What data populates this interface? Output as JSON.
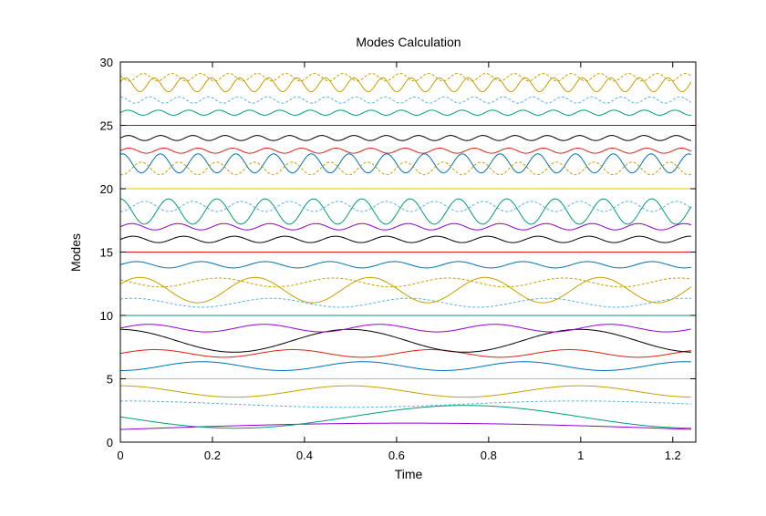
{
  "chart_data": {
    "type": "line",
    "title": "Modes Calculation",
    "xlabel": "Time",
    "ylabel": "Modes",
    "xlim": [
      0,
      1.25
    ],
    "ylim": [
      0,
      30
    ],
    "xticks": [
      0,
      0.2,
      0.4,
      0.6,
      0.8,
      1,
      1.2
    ],
    "xtick_labels": [
      "0",
      "0.2",
      "0.4",
      "0.6",
      "0.8",
      "1",
      "1.2"
    ],
    "yticks": [
      0,
      5,
      10,
      15,
      20,
      25,
      30
    ],
    "ytick_labels": [
      "0",
      "5",
      "10",
      "15",
      "20",
      "25",
      "30"
    ],
    "grid": false,
    "legend": "none",
    "x_start": 0,
    "x_end": 1.24,
    "series": [
      {
        "color": "#9400d3",
        "baseline": 1,
        "amplitude": 0.5,
        "period": 2.5,
        "phase": 0,
        "dashed": false
      },
      {
        "color": "#009e73",
        "baseline": 2,
        "amplitude": 0.9,
        "period": 1.0,
        "phase": 3.14159,
        "dashed": false
      },
      {
        "color": "#56b4e9",
        "baseline": 3,
        "amplitude": 0.25,
        "period": 1.0,
        "phase": 1.6,
        "dashed": true
      },
      {
        "color": "#c8a000",
        "baseline": 4,
        "amplitude": 0.45,
        "period": 0.5,
        "phase": 1.6,
        "dashed": false
      },
      {
        "color": "#f0c000",
        "baseline": 5,
        "amplitude": 0,
        "period": 1.0,
        "phase": 0,
        "dashed": false
      },
      {
        "color": "#0072b2",
        "baseline": 6,
        "amplitude": 0.35,
        "period": 0.35,
        "phase": -1.6,
        "dashed": false
      },
      {
        "color": "#e51e10",
        "baseline": 7,
        "amplitude": 0.3,
        "period": 0.3,
        "phase": 0,
        "dashed": false
      },
      {
        "color": "#000000",
        "baseline": 8,
        "amplitude": 0.9,
        "period": 0.5,
        "phase": 1.6,
        "dashed": false
      },
      {
        "color": "#9400d3",
        "baseline": 9,
        "amplitude": 0.3,
        "period": 0.25,
        "phase": 0,
        "dashed": false
      },
      {
        "color": "#009e73",
        "baseline": 10,
        "amplitude": 0,
        "period": 1.0,
        "phase": 0,
        "dashed": false
      },
      {
        "color": "#56b4e9",
        "baseline": 11,
        "amplitude": 0.35,
        "period": 0.3,
        "phase": 1.0,
        "dashed": true
      },
      {
        "color": "#c8a000",
        "baseline": 12,
        "amplitude": 1.0,
        "period": 0.25,
        "phase": 0.5,
        "dashed": false
      },
      {
        "color": "#c8a000",
        "baseline": 12.6,
        "amplitude": 0.35,
        "period": 0.25,
        "phase": 2.5,
        "dashed": true
      },
      {
        "color": "#0072b2",
        "baseline": 14,
        "amplitude": 0.25,
        "period": 0.14,
        "phase": 0,
        "dashed": false
      },
      {
        "color": "#e51e10",
        "baseline": 15,
        "amplitude": 0,
        "period": 1.0,
        "phase": 0,
        "dashed": false
      },
      {
        "color": "#000000",
        "baseline": 16,
        "amplitude": 0.25,
        "period": 0.11,
        "phase": 0,
        "dashed": false
      },
      {
        "color": "#9400d3",
        "baseline": 17,
        "amplitude": 0.25,
        "period": 0.1,
        "phase": 0,
        "dashed": false
      },
      {
        "color": "#009e73",
        "baseline": 18.2,
        "amplitude": 1.0,
        "period": 0.105,
        "phase": 1.6,
        "dashed": false
      },
      {
        "color": "#56b4e9",
        "baseline": 18.6,
        "amplitude": 0.4,
        "period": 0.105,
        "phase": -1.6,
        "dashed": true
      },
      {
        "color": "#f0c000",
        "baseline": 20,
        "amplitude": 0,
        "period": 1.0,
        "phase": 0,
        "dashed": false
      },
      {
        "color": "#0072b2",
        "baseline": 22,
        "amplitude": 0.75,
        "period": 0.082,
        "phase": 1.2,
        "dashed": false
      },
      {
        "color": "#c8a000",
        "baseline": 21.6,
        "amplitude": 0.5,
        "period": 0.082,
        "phase": -1.9,
        "dashed": true
      },
      {
        "color": "#e51e10",
        "baseline": 23,
        "amplitude": 0.2,
        "period": 0.075,
        "phase": 0,
        "dashed": false
      },
      {
        "color": "#000000",
        "baseline": 24,
        "amplitude": 0.2,
        "period": 0.07,
        "phase": 0,
        "dashed": false
      },
      {
        "color": "#9400d3",
        "baseline": 25,
        "amplitude": 0,
        "period": 1.0,
        "phase": 0,
        "dashed": false
      },
      {
        "color": "#009e73",
        "baseline": 26,
        "amplitude": 0.2,
        "period": 0.066,
        "phase": 0,
        "dashed": false
      },
      {
        "color": "#56b4e9",
        "baseline": 27,
        "amplitude": 0.25,
        "period": 0.064,
        "phase": 1.6,
        "dashed": true
      },
      {
        "color": "#c8a000",
        "baseline": 28.2,
        "amplitude": 0.55,
        "period": 0.062,
        "phase": 0.4,
        "dashed": false
      },
      {
        "color": "#c8a000",
        "baseline": 28.8,
        "amplitude": 0.3,
        "period": 0.062,
        "phase": 2.8,
        "dashed": true
      }
    ]
  }
}
